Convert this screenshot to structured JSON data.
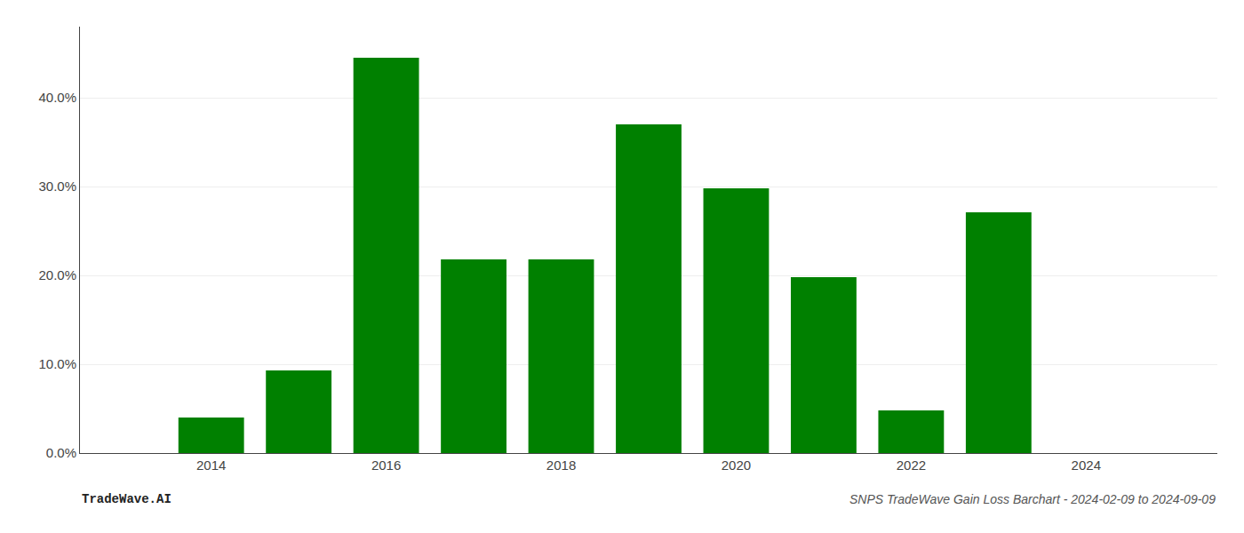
{
  "chart_data": {
    "type": "bar",
    "x": [
      2014,
      2015,
      2016,
      2017,
      2018,
      2019,
      2020,
      2021,
      2022,
      2023
    ],
    "values": [
      0.04,
      0.093,
      0.445,
      0.218,
      0.218,
      0.37,
      0.298,
      0.198,
      0.048,
      0.271
    ],
    "color": "#008000",
    "xlim": [
      2012.5,
      2025.5
    ],
    "xticks": [
      2014,
      2016,
      2018,
      2020,
      2022,
      2024
    ],
    "ylim": [
      0.0,
      0.48
    ],
    "yticks": [
      {
        "value": 0.0,
        "label": "0.0%"
      },
      {
        "value": 0.1,
        "label": "10.0%"
      },
      {
        "value": 0.2,
        "label": "20.0%"
      },
      {
        "value": 0.3,
        "label": "30.0%"
      },
      {
        "value": 0.4,
        "label": "40.0%"
      }
    ],
    "grid": true,
    "annotations": [
      "TradeWave.AI",
      "SNPS TradeWave Gain Loss Barchart - 2024-02-09 to 2024-09-09"
    ]
  }
}
